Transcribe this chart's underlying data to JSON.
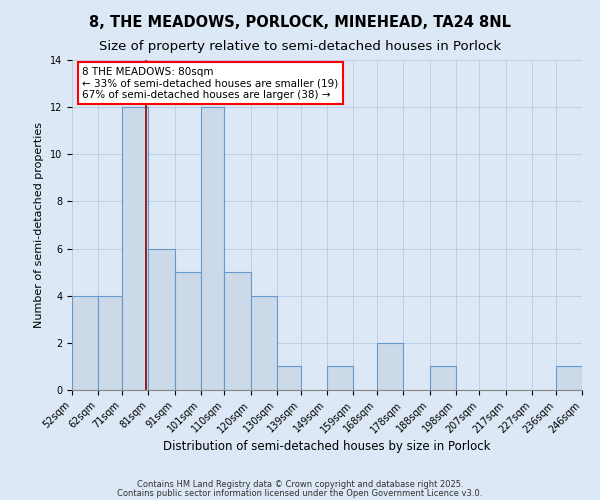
{
  "title1": "8, THE MEADOWS, PORLOCK, MINEHEAD, TA24 8NL",
  "title2": "Size of property relative to semi-detached houses in Porlock",
  "xlabel": "Distribution of semi-detached houses by size in Porlock",
  "ylabel": "Number of semi-detached properties",
  "bar_edges": [
    52,
    62,
    71,
    81,
    91,
    101,
    110,
    120,
    130,
    139,
    149,
    159,
    168,
    178,
    188,
    198,
    207,
    217,
    227,
    236,
    246
  ],
  "bar_heights": [
    4,
    4,
    12,
    6,
    5,
    12,
    5,
    4,
    1,
    0,
    1,
    0,
    2,
    0,
    1,
    0,
    0,
    0,
    0,
    1
  ],
  "bar_color": "#ccd9e8",
  "bar_edgecolor": "#6699cc",
  "bar_linewidth": 0.8,
  "vline_x": 80,
  "vline_color": "#880000",
  "vline_linewidth": 1.2,
  "annotation_text": "8 THE MEADOWS: 80sqm\n← 33% of semi-detached houses are smaller (19)\n67% of semi-detached houses are larger (38) →",
  "ylim": [
    0,
    14
  ],
  "yticks": [
    0,
    2,
    4,
    6,
    8,
    10,
    12,
    14
  ],
  "grid_color": "#b8cce4",
  "background_color": "#dce8f5",
  "footer_line1": "Contains HM Land Registry data © Crown copyright and database right 2025.",
  "footer_line2": "Contains public sector information licensed under the Open Government Licence v3.0.",
  "title1_fontsize": 10.5,
  "title2_fontsize": 9.5,
  "xlabel_fontsize": 8.5,
  "ylabel_fontsize": 8,
  "tick_fontsize": 7,
  "annotation_fontsize": 7.5,
  "footer_fontsize": 6
}
